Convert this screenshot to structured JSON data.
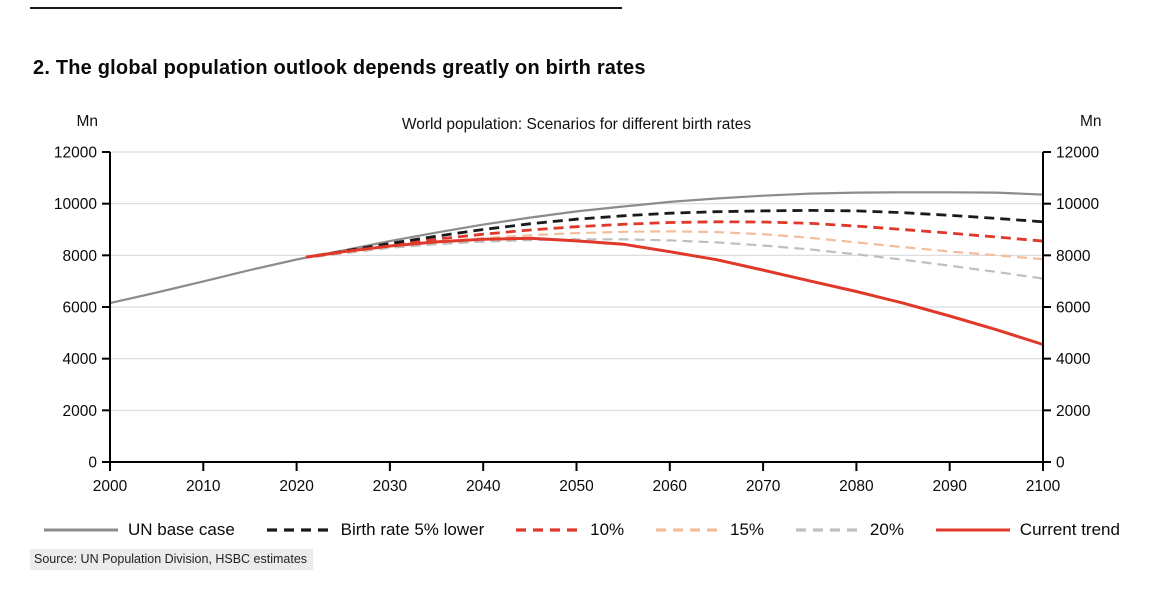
{
  "figure_title": "2. The global population outlook depends greatly on birth rates",
  "source": "Source: UN Population Division, HSBC estimates",
  "chart_data": {
    "type": "line",
    "title": "World population: Scenarios for different birth rates",
    "unit_label_left": "Mn",
    "unit_label_right": "Mn",
    "xlabel": "",
    "ylabel": "Mn",
    "xlim": [
      2000,
      2100
    ],
    "ylim": [
      0,
      12000
    ],
    "x_ticks": [
      2000,
      2010,
      2020,
      2030,
      2040,
      2050,
      2060,
      2070,
      2080,
      2090,
      2100
    ],
    "y_ticks": [
      0,
      2000,
      4000,
      6000,
      8000,
      10000,
      12000
    ],
    "grid": "horizontal",
    "grid_color": "#d9d9d9",
    "axis_color": "#000000",
    "legend_position": "bottom",
    "series": [
      {
        "name": "UN base case",
        "style": "solid",
        "color": "#8c8c8c",
        "width": 2.2,
        "points": [
          [
            2000,
            6150
          ],
          [
            2005,
            6560
          ],
          [
            2010,
            6990
          ],
          [
            2015,
            7430
          ],
          [
            2020,
            7840
          ],
          [
            2025,
            8190
          ],
          [
            2030,
            8550
          ],
          [
            2035,
            8880
          ],
          [
            2040,
            9190
          ],
          [
            2045,
            9460
          ],
          [
            2050,
            9700
          ],
          [
            2055,
            9890
          ],
          [
            2060,
            10070
          ],
          [
            2065,
            10200
          ],
          [
            2070,
            10310
          ],
          [
            2075,
            10390
          ],
          [
            2080,
            10430
          ],
          [
            2085,
            10440
          ],
          [
            2090,
            10440
          ],
          [
            2095,
            10430
          ],
          [
            2100,
            10350
          ]
        ]
      },
      {
        "name": "20%",
        "style": "dashed",
        "color": "#bfbfbf",
        "width": 2.2,
        "points": [
          [
            2022,
            7950
          ],
          [
            2025,
            8080
          ],
          [
            2030,
            8290
          ],
          [
            2035,
            8430
          ],
          [
            2040,
            8530
          ],
          [
            2045,
            8590
          ],
          [
            2050,
            8620
          ],
          [
            2055,
            8620
          ],
          [
            2060,
            8580
          ],
          [
            2065,
            8500
          ],
          [
            2070,
            8380
          ],
          [
            2075,
            8230
          ],
          [
            2080,
            8040
          ],
          [
            2085,
            7830
          ],
          [
            2090,
            7600
          ],
          [
            2095,
            7360
          ],
          [
            2100,
            7100
          ]
        ]
      },
      {
        "name": "15%",
        "style": "dashed",
        "color": "#f3bd9b",
        "width": 2.2,
        "points": [
          [
            2022,
            7960
          ],
          [
            2025,
            8110
          ],
          [
            2030,
            8340
          ],
          [
            2035,
            8520
          ],
          [
            2040,
            8660
          ],
          [
            2045,
            8780
          ],
          [
            2050,
            8860
          ],
          [
            2055,
            8910
          ],
          [
            2060,
            8930
          ],
          [
            2065,
            8900
          ],
          [
            2070,
            8820
          ],
          [
            2075,
            8680
          ],
          [
            2080,
            8500
          ],
          [
            2085,
            8320
          ],
          [
            2090,
            8150
          ],
          [
            2095,
            8000
          ],
          [
            2100,
            7850
          ]
        ]
      },
      {
        "name": "10%",
        "style": "dashed",
        "color": "#e0392c",
        "width": 2.8,
        "points": [
          [
            2022,
            7970
          ],
          [
            2025,
            8130
          ],
          [
            2030,
            8400
          ],
          [
            2035,
            8630
          ],
          [
            2040,
            8820
          ],
          [
            2045,
            8980
          ],
          [
            2050,
            9110
          ],
          [
            2055,
            9200
          ],
          [
            2060,
            9270
          ],
          [
            2065,
            9300
          ],
          [
            2070,
            9290
          ],
          [
            2075,
            9240
          ],
          [
            2080,
            9130
          ],
          [
            2085,
            9000
          ],
          [
            2090,
            8860
          ],
          [
            2095,
            8710
          ],
          [
            2100,
            8550
          ]
        ]
      },
      {
        "name": "Birth rate 5% lower",
        "style": "dashed",
        "color": "#1a1a1a",
        "width": 2.8,
        "points": [
          [
            2022,
            7980
          ],
          [
            2025,
            8160
          ],
          [
            2030,
            8460
          ],
          [
            2035,
            8740
          ],
          [
            2040,
            9000
          ],
          [
            2045,
            9220
          ],
          [
            2050,
            9400
          ],
          [
            2055,
            9530
          ],
          [
            2060,
            9630
          ],
          [
            2065,
            9690
          ],
          [
            2070,
            9720
          ],
          [
            2075,
            9740
          ],
          [
            2080,
            9720
          ],
          [
            2085,
            9650
          ],
          [
            2090,
            9550
          ],
          [
            2095,
            9430
          ],
          [
            2100,
            9300
          ]
        ]
      },
      {
        "name": "Current trend",
        "style": "solid",
        "color": "#e0392c",
        "width": 3,
        "points": [
          [
            2021,
            7930
          ],
          [
            2025,
            8140
          ],
          [
            2030,
            8360
          ],
          [
            2035,
            8520
          ],
          [
            2040,
            8620
          ],
          [
            2045,
            8660
          ],
          [
            2050,
            8560
          ],
          [
            2055,
            8430
          ],
          [
            2060,
            8140
          ],
          [
            2065,
            7830
          ],
          [
            2070,
            7430
          ],
          [
            2075,
            7010
          ],
          [
            2080,
            6600
          ],
          [
            2085,
            6150
          ],
          [
            2090,
            5650
          ],
          [
            2095,
            5120
          ],
          [
            2100,
            4550
          ]
        ]
      }
    ],
    "legend_order": [
      "UN base case",
      "Birth rate 5% lower",
      "10%",
      "15%",
      "20%",
      "Current trend"
    ]
  }
}
